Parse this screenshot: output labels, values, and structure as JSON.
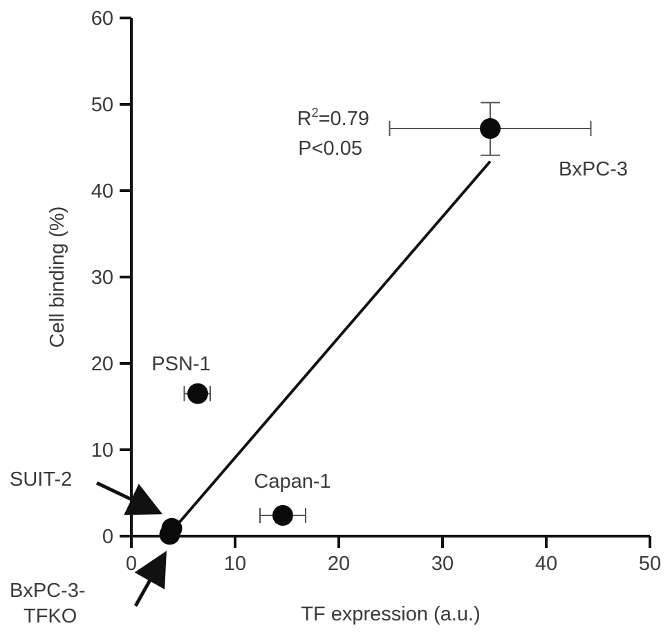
{
  "chart_data": {
    "type": "scatter",
    "xlabel": "TF expression (a.u.)",
    "ylabel": "Cell binding (%)",
    "xlim": [
      0,
      50
    ],
    "ylim": [
      0,
      60
    ],
    "xticks": [
      0,
      10,
      20,
      30,
      40,
      50
    ],
    "yticks": [
      0,
      10,
      20,
      30,
      40,
      50,
      60
    ],
    "grid": false,
    "points": [
      {
        "label": "BxPC-3",
        "x": 34.6,
        "y": 47.2,
        "x_err_low": 24.9,
        "x_err_high": 44.3,
        "y_err_low": 44.1,
        "y_err_high": 50.2
      },
      {
        "label": "PSN-1",
        "x": 6.4,
        "y": 16.5,
        "x_err_low": 5.1,
        "x_err_high": 7.6,
        "y_err_low": 16.5,
        "y_err_high": 16.5
      },
      {
        "label": "Capan-1",
        "x": 14.6,
        "y": 2.4,
        "x_err_low": 12.4,
        "x_err_high": 16.8,
        "y_err_low": 2.4,
        "y_err_high": 2.4
      },
      {
        "label": "SUIT-2",
        "x": 3.9,
        "y": 0.9,
        "x_err_low": 3.9,
        "x_err_high": 3.9,
        "y_err_low": 0.9,
        "y_err_high": 0.9
      },
      {
        "label": "BxPC-3-TFKO",
        "x": 3.7,
        "y": 0.2,
        "x_err_low": 3.7,
        "x_err_high": 3.7,
        "y_err_low": 0.2,
        "y_err_high": 0.2
      }
    ],
    "regression": {
      "x_start": 3.7,
      "y_start": 0.3,
      "x_end": 34.6,
      "y_end": 43.4
    },
    "annotations": {
      "r2_prefix": "R",
      "r2_sup": "2",
      "r2_value": "=0.79",
      "p_value": "P<0.05",
      "suit2_label": "SUIT-2",
      "tfko_label_line1": "BxPC-3-",
      "tfko_label_line2": "TFKO"
    }
  }
}
